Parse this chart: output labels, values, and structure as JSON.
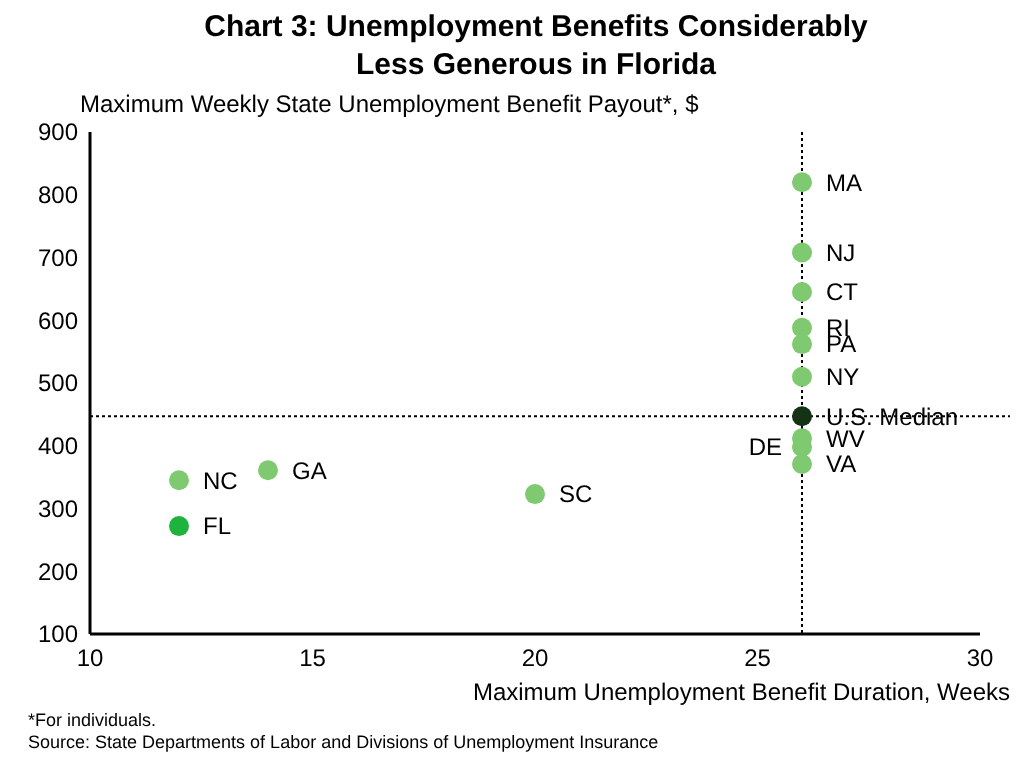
{
  "chart_data": {
    "type": "scatter",
    "title": "Chart 3: Unemployment Benefits Considerably Less Generous in Florida",
    "xlabel": "Maximum Unemployment Benefit Duration, Weeks",
    "ylabel": "Maximum Weekly State Unemployment Benefit Payout*, $",
    "series": [
      {
        "color": "#7fc971",
        "x": [
          26,
          26,
          26,
          26,
          26,
          26,
          26,
          26,
          26,
          12,
          14,
          20
        ],
        "values": [
          820,
          708,
          645,
          588,
          562,
          510,
          412,
          398,
          371,
          345,
          361,
          323
        ]
      },
      {
        "color": "#1db33c",
        "x": [
          12
        ],
        "values": [
          272
        ]
      },
      {
        "color": "#143314",
        "x": [
          26
        ],
        "values": [
          447
        ]
      }
    ],
    "marker": "circle",
    "xlim": [
      10,
      30
    ],
    "xticks": [
      10,
      15,
      20,
      25,
      30
    ],
    "ylim": [
      100,
      900
    ],
    "yticks": [
      100,
      200,
      300,
      400,
      500,
      600,
      700,
      800,
      900
    ],
    "grid": false,
    "ref_lines": [
      {
        "axis": "x",
        "value": 26,
        "line_style": "dotted",
        "color": "#000000"
      },
      {
        "axis": "y",
        "value": 447,
        "line_style": "dotted",
        "color": "#000000"
      }
    ],
    "annotations": [
      {
        "text": "MA",
        "x": 26,
        "y": 820
      },
      {
        "text": "NJ",
        "x": 26,
        "y": 708
      },
      {
        "text": "CT",
        "x": 26,
        "y": 645
      },
      {
        "text": "RI",
        "x": 26,
        "y": 588
      },
      {
        "text": "PA",
        "x": 26,
        "y": 562
      },
      {
        "text": "NY",
        "x": 26,
        "y": 510
      },
      {
        "text": "U.S. Median",
        "x": 26,
        "y": 447
      },
      {
        "text": "WV",
        "x": 26,
        "y": 412
      },
      {
        "text": "DE",
        "x": 26,
        "y": 398
      },
      {
        "text": "VA",
        "x": 26,
        "y": 371
      },
      {
        "text": "NC",
        "x": 12,
        "y": 345
      },
      {
        "text": "GA",
        "x": 14,
        "y": 361
      },
      {
        "text": "SC",
        "x": 20,
        "y": 323
      },
      {
        "text": "FL",
        "x": 12,
        "y": 272
      },
      "*For individuals.",
      "Source: State Departments of Labor and Divisions of Unemployment Insurance"
    ]
  }
}
